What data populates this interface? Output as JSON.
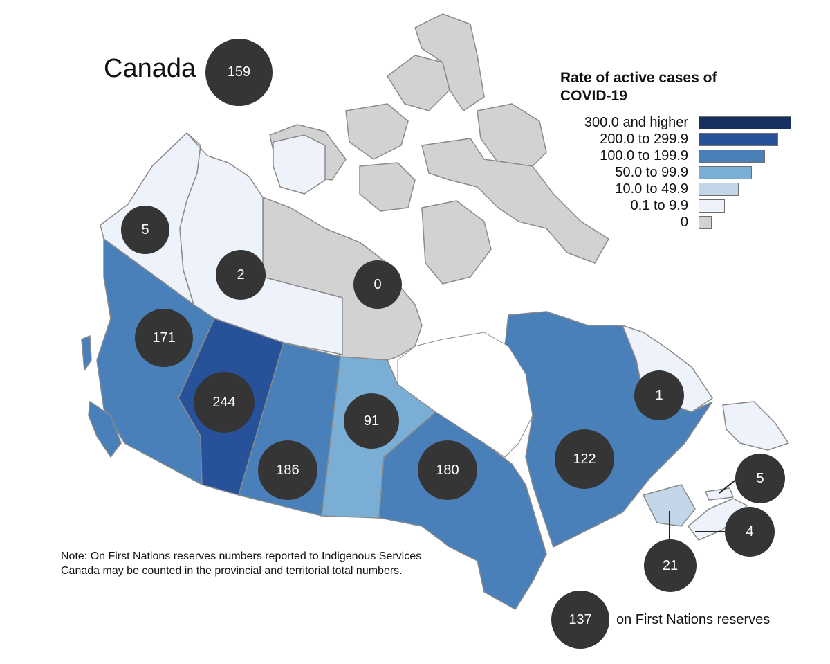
{
  "title": "Canada",
  "national_count": "159",
  "legend": {
    "title_line1": "Rate of active cases of",
    "title_line2": "COVID-19",
    "items": [
      {
        "label": "300.0 and higher",
        "color": "#16305f"
      },
      {
        "label": "200.0 to 299.9",
        "color": "#27529a"
      },
      {
        "label": "100.0 to 199.9",
        "color": "#4a80b9"
      },
      {
        "label": "50.0 to 99.9",
        "color": "#7aaed4"
      },
      {
        "label": "10.0 to 49.9",
        "color": "#c3d6e8"
      },
      {
        "label": "0.1 to 9.9",
        "color": "#eef2fb"
      },
      {
        "label": "0",
        "color": "#d2d2d2"
      }
    ]
  },
  "regions": {
    "yukon": {
      "count": "5",
      "color": "#eef2fb"
    },
    "northwest_territories": {
      "count": "2",
      "color": "#eef2fb"
    },
    "nunavut": {
      "count": "0",
      "color": "#d2d2d2"
    },
    "british_columbia": {
      "count": "171",
      "color": "#4a80b9"
    },
    "alberta": {
      "count": "244",
      "color": "#27529a"
    },
    "saskatchewan": {
      "count": "186",
      "color": "#4a80b9"
    },
    "manitoba": {
      "count": "91",
      "color": "#7aaed4"
    },
    "ontario": {
      "count": "180",
      "color": "#4a80b9"
    },
    "quebec": {
      "count": "122",
      "color": "#4a80b9"
    },
    "newfoundland_and_labrador": {
      "count": "1",
      "color": "#eef2fb"
    },
    "prince_edward_island": {
      "count": "5",
      "color": "#eef2fb"
    },
    "nova_scotia": {
      "count": "4",
      "color": "#eef2fb"
    },
    "new_brunswick": {
      "count": "21",
      "color": "#c3d6e8"
    }
  },
  "first_nations": {
    "count": "137",
    "label": "on First Nations reserves"
  },
  "note": "Note: On First Nations reserves numbers reported to Indigenous Services Canada may be counted in the provincial and territorial total numbers."
}
